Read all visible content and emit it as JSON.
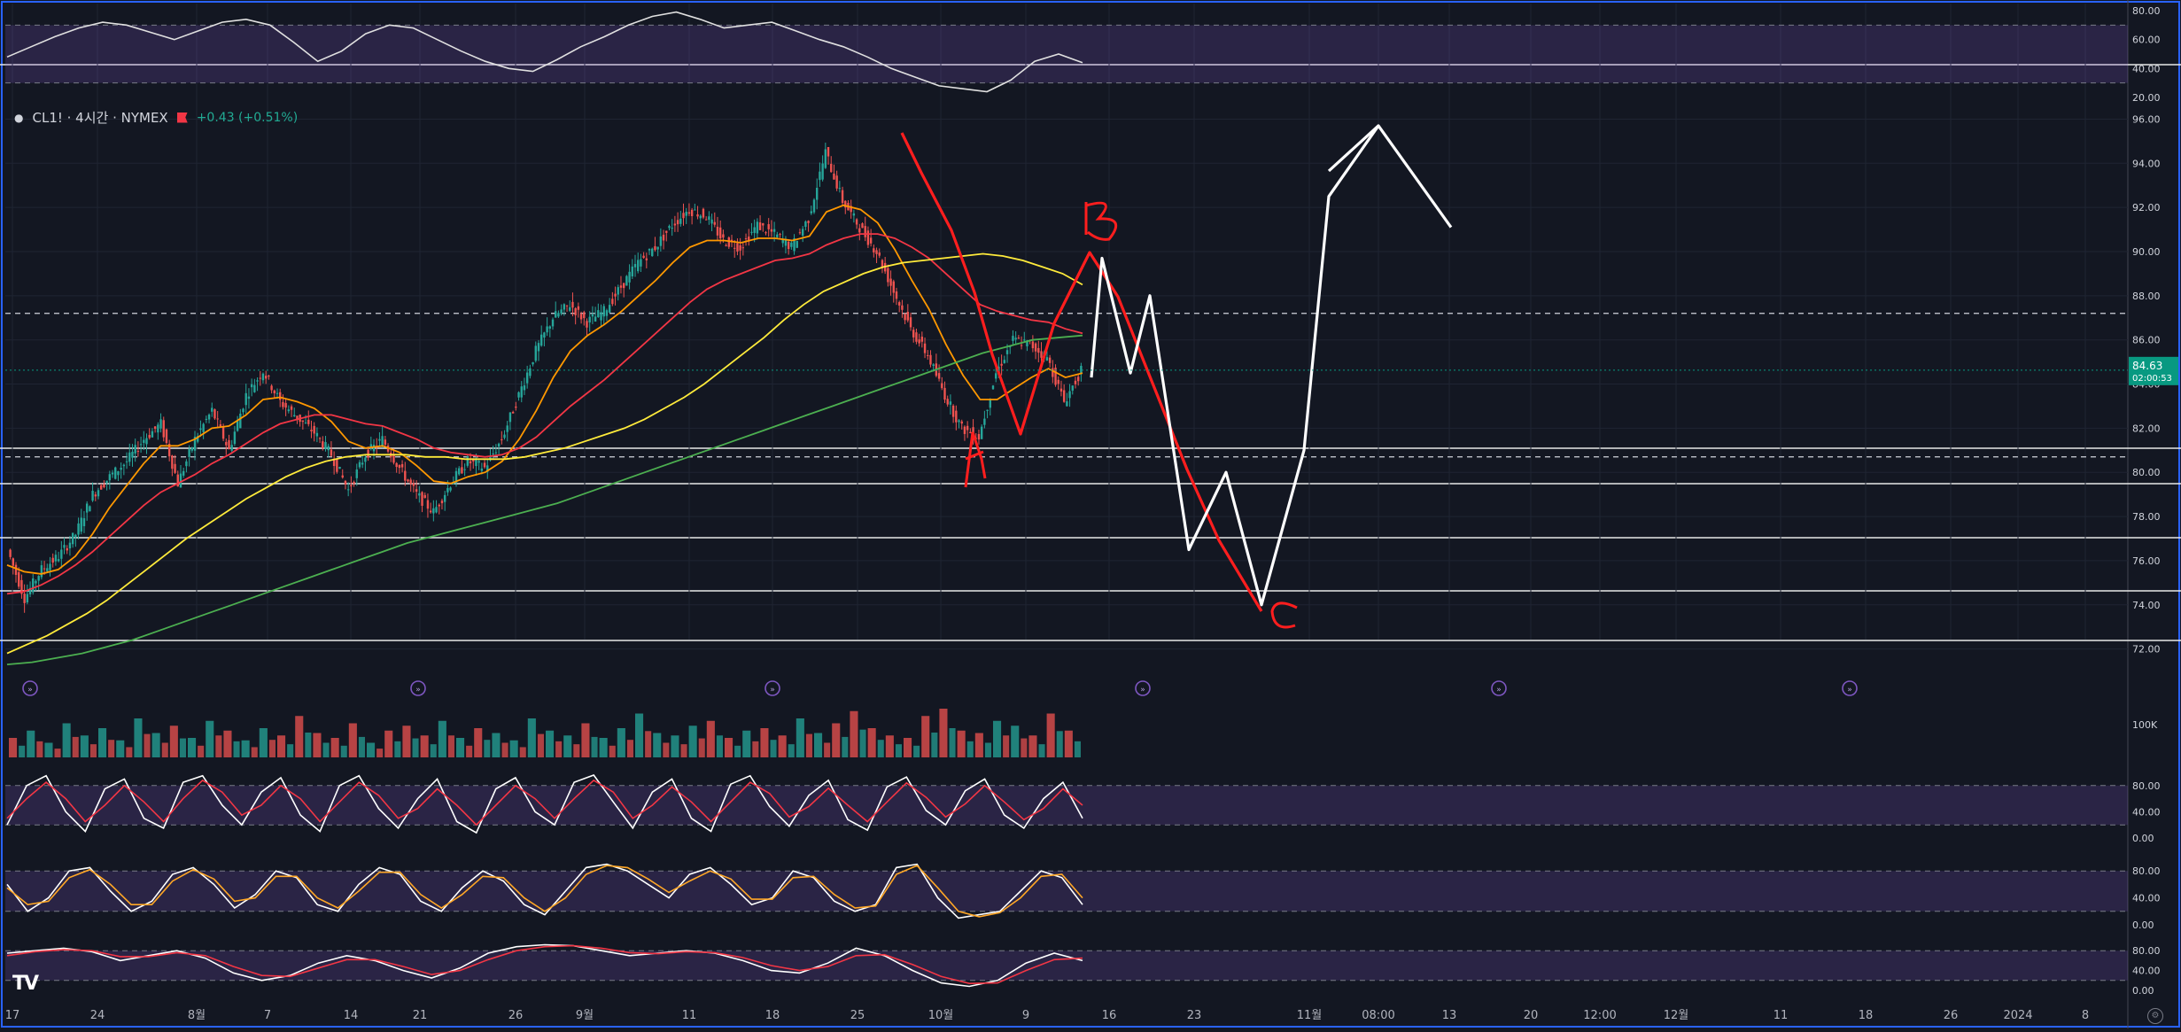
{
  "symbol_legend": {
    "symbol": "CL1! · 4시간 · NYMEX",
    "change": "+0.43 (+0.51%)",
    "up_color": "#26a69a",
    "down_color": "#ef5350"
  },
  "last_price": {
    "value": "84.63",
    "countdown": "02:00:53",
    "color": "#089981"
  },
  "x_axis": {
    "ticks": [
      "17",
      "24",
      "8월",
      "7",
      "14",
      "21",
      "26",
      "9월",
      "11",
      "18",
      "25",
      "10월",
      "9",
      "16",
      "23",
      "11월",
      "08:00",
      "13",
      "20",
      "12:00",
      "12월",
      "11",
      "18",
      "26",
      "2024",
      "8"
    ]
  },
  "chart_data": [
    {
      "type": "line",
      "panel": "rsi",
      "ylim": [
        20,
        80
      ],
      "y_ticks": [
        "80.00",
        "60.00",
        "40.00",
        "20.00"
      ],
      "bands": [
        30,
        70
      ],
      "series": [
        {
          "color": "#e0e0e0",
          "values": [
            48,
            55,
            62,
            68,
            72,
            70,
            65,
            60,
            66,
            72,
            74,
            70,
            58,
            45,
            52,
            64,
            70,
            68,
            60,
            52,
            45,
            40,
            38,
            46,
            55,
            62,
            70,
            76,
            79,
            74,
            68,
            70,
            72,
            66,
            60,
            55,
            48,
            40,
            34,
            28,
            26,
            24,
            32,
            45,
            50,
            44
          ]
        }
      ]
    },
    {
      "type": "candlestick",
      "panel": "price",
      "title": "CL1! · 4시간 · NYMEX",
      "ylim": [
        70.5,
        96.5
      ],
      "y_ticks": [
        "96.00",
        "94.00",
        "92.00",
        "90.00",
        "88.00",
        "86.00",
        "84.00",
        "82.00",
        "80.00",
        "78.00",
        "76.00",
        "74.00",
        "72.00"
      ],
      "horizontal_levels": [
        87.2,
        80.7
      ],
      "close_path": [
        76.5,
        74.3,
        75.6,
        76.2,
        77.2,
        79.0,
        79.8,
        80.5,
        81.5,
        82.2,
        79.5,
        81.5,
        82.8,
        81.0,
        83.5,
        84.6,
        83.2,
        82.5,
        81.8,
        80.8,
        79.2,
        80.8,
        81.5,
        80.2,
        79.0,
        78.2,
        79.5,
        80.5,
        80.2,
        81.5,
        83.5,
        85.5,
        87.0,
        87.6,
        86.8,
        87.3,
        88.4,
        89.5,
        90.2,
        91.2,
        91.9,
        91.6,
        90.5,
        90.2,
        91.2,
        90.8,
        90.2,
        91.5,
        94.5,
        92.3,
        91.1,
        90.0,
        88.2,
        86.5,
        85.3,
        83.5,
        82.0,
        81.6,
        84.5,
        86.0,
        85.8,
        85.2,
        83.2,
        84.6
      ],
      "moving_averages": [
        {
          "color": "#ff9800",
          "values": [
            75.8,
            75.5,
            75.4,
            75.6,
            76.2,
            77.2,
            78.4,
            79.4,
            80.4,
            81.2,
            81.2,
            81.5,
            82.0,
            82.1,
            82.6,
            83.3,
            83.4,
            83.2,
            82.9,
            82.3,
            81.4,
            81.1,
            81.2,
            80.9,
            80.3,
            79.6,
            79.5,
            79.8,
            80.0,
            80.5,
            81.5,
            82.8,
            84.3,
            85.5,
            86.2,
            86.7,
            87.3,
            88.0,
            88.7,
            89.5,
            90.2,
            90.5,
            90.5,
            90.4,
            90.6,
            90.6,
            90.5,
            90.7,
            91.8,
            92.1,
            91.9,
            91.3,
            90.1,
            88.7,
            87.4,
            85.8,
            84.4,
            83.3,
            83.3,
            83.8,
            84.3,
            84.7,
            84.3,
            84.5
          ]
        },
        {
          "color": "#f23645",
          "values": [
            74.5,
            74.6,
            74.9,
            75.3,
            75.8,
            76.4,
            77.1,
            77.8,
            78.5,
            79.1,
            79.5,
            79.9,
            80.4,
            80.8,
            81.3,
            81.8,
            82.2,
            82.4,
            82.6,
            82.6,
            82.4,
            82.2,
            82.1,
            81.8,
            81.5,
            81.1,
            80.9,
            80.8,
            80.7,
            80.8,
            81.1,
            81.6,
            82.3,
            83.0,
            83.6,
            84.2,
            84.9,
            85.6,
            86.3,
            87.0,
            87.7,
            88.3,
            88.7,
            89.0,
            89.3,
            89.6,
            89.7,
            89.9,
            90.3,
            90.6,
            90.8,
            90.8,
            90.6,
            90.2,
            89.7,
            89.0,
            88.3,
            87.6,
            87.3,
            87.1,
            86.9,
            86.8,
            86.5,
            86.3
          ]
        },
        {
          "color": "#ffeb3b",
          "values": [
            71.8,
            72.2,
            72.6,
            73.1,
            73.6,
            74.2,
            74.9,
            75.6,
            76.3,
            77.0,
            77.6,
            78.2,
            78.8,
            79.3,
            79.8,
            80.2,
            80.5,
            80.7,
            80.8,
            80.8,
            80.8,
            80.7,
            80.7,
            80.6,
            80.6,
            80.6,
            80.7,
            80.9,
            81.1,
            81.4,
            81.7,
            82.0,
            82.4,
            82.9,
            83.4,
            84.0,
            84.7,
            85.4,
            86.1,
            86.9,
            87.6,
            88.2,
            88.6,
            89.0,
            89.3,
            89.5,
            89.6,
            89.7,
            89.8,
            89.9,
            89.8,
            89.6,
            89.3,
            89.0,
            88.5
          ]
        },
        {
          "color": "#4caf50",
          "values": [
            71.3,
            71.4,
            71.6,
            71.8,
            72.1,
            72.4,
            72.8,
            73.2,
            73.6,
            74.0,
            74.4,
            74.8,
            75.2,
            75.6,
            76.0,
            76.4,
            76.8,
            77.1,
            77.4,
            77.7,
            78.0,
            78.3,
            78.6,
            79.0,
            79.4,
            79.8,
            80.2,
            80.6,
            81.0,
            81.4,
            81.8,
            82.2,
            82.6,
            83.0,
            83.4,
            83.8,
            84.2,
            84.6,
            85.0,
            85.4,
            85.7,
            86.0,
            86.1,
            86.2
          ]
        }
      ],
      "annotations": [
        {
          "label": "A",
          "color": "#ff1e1e"
        },
        {
          "label": "B",
          "color": "#ff1e1e"
        },
        {
          "label": "C",
          "color": "#ff1e1e"
        },
        {
          "label": "white projection",
          "color": "#ffffff",
          "points": [
            [
              0,
              84.3
            ],
            [
              1,
              89.7
            ],
            [
              2,
              84.5
            ],
            [
              3,
              88.0
            ],
            [
              4,
              76.5
            ],
            [
              5,
              80.0
            ],
            [
              6,
              74.0
            ],
            [
              7,
              81.0
            ],
            [
              8,
              92.5
            ],
            [
              9,
              95.7
            ],
            [
              10,
              91.1
            ]
          ]
        }
      ]
    },
    {
      "type": "bar",
      "panel": "volume",
      "y_ticks": [
        "100K"
      ],
      "values": [
        40,
        55,
        30,
        70,
        45,
        60,
        35,
        80,
        50,
        65,
        40,
        75,
        55,
        35,
        60,
        45,
        85,
        50,
        40,
        70,
        30,
        55,
        65,
        45,
        75,
        40,
        60,
        50,
        35,
        80,
        55,
        45,
        70,
        40,
        60,
        90,
        50,
        45,
        65,
        75,
        40,
        55,
        60,
        45,
        80,
        50,
        70,
        95,
        60,
        45,
        40,
        85,
        100,
        55,
        50,
        75,
        65,
        45,
        90,
        55
      ]
    },
    {
      "type": "line",
      "panel": "oscillator-1",
      "ylim": [
        0,
        100
      ],
      "y_ticks": [
        "80.00",
        "40.00",
        "0.00"
      ],
      "series": [
        {
          "color": "#ffffff",
          "values": [
            20,
            80,
            95,
            40,
            10,
            75,
            90,
            30,
            15,
            85,
            95,
            50,
            20,
            70,
            92,
            35,
            10,
            80,
            95,
            45,
            15,
            60,
            90,
            25,
            8,
            75,
            92,
            40,
            20,
            85,
            96,
            55,
            15,
            70,
            90,
            30,
            10,
            82,
            95,
            48,
            18,
            65,
            88,
            28,
            12,
            78,
            93,
            42,
            20,
            72,
            90,
            35,
            15,
            60,
            85,
            30
          ]
        },
        {
          "color": "#f23645",
          "values": [
            30,
            60,
            85,
            60,
            25,
            50,
            80,
            55,
            25,
            60,
            88,
            70,
            35,
            50,
            80,
            60,
            25,
            55,
            85,
            65,
            30,
            45,
            75,
            50,
            20,
            50,
            80,
            60,
            30,
            60,
            88,
            70,
            30,
            50,
            78,
            55,
            25,
            55,
            85,
            68,
            32,
            48,
            76,
            50,
            25,
            55,
            84,
            62,
            32,
            52,
            80,
            55,
            28,
            45,
            75,
            50
          ]
        }
      ]
    },
    {
      "type": "line",
      "panel": "oscillator-2",
      "ylim": [
        0,
        100
      ],
      "y_ticks": [
        "80.00",
        "40.00",
        "0.00"
      ],
      "series": [
        {
          "color": "#ffffff",
          "values": [
            60,
            20,
            40,
            80,
            85,
            50,
            20,
            35,
            75,
            85,
            60,
            25,
            45,
            80,
            70,
            30,
            20,
            60,
            85,
            75,
            35,
            20,
            55,
            80,
            65,
            30,
            15,
            50,
            85,
            90,
            80,
            60,
            40,
            75,
            85,
            60,
            30,
            40,
            80,
            70,
            35,
            20,
            30,
            85,
            90,
            40,
            10,
            15,
            20,
            50,
            80,
            70,
            30
          ]
        },
        {
          "color": "#ffa726",
          "values": [
            55,
            30,
            35,
            70,
            82,
            60,
            30,
            30,
            65,
            82,
            68,
            35,
            40,
            72,
            72,
            40,
            25,
            50,
            78,
            78,
            45,
            25,
            45,
            72,
            70,
            40,
            20,
            40,
            75,
            88,
            85,
            68,
            48,
            65,
            80,
            68,
            38,
            38,
            70,
            72,
            45,
            25,
            28,
            75,
            88,
            55,
            20,
            12,
            18,
            40,
            72,
            75,
            40
          ]
        }
      ]
    },
    {
      "type": "line",
      "panel": "oscillator-3",
      "ylim": [
        0,
        100
      ],
      "y_ticks": [
        "80.00",
        "40.00",
        "0.00"
      ],
      "series": [
        {
          "color": "#ffffff",
          "values": [
            75,
            80,
            85,
            78,
            60,
            70,
            80,
            65,
            35,
            20,
            30,
            55,
            70,
            60,
            40,
            25,
            45,
            75,
            88,
            92,
            90,
            80,
            70,
            75,
            80,
            75,
            60,
            40,
            35,
            55,
            85,
            70,
            40,
            15,
            8,
            20,
            55,
            75,
            60
          ]
        },
        {
          "color": "#f23645",
          "values": [
            70,
            78,
            82,
            80,
            68,
            68,
            76,
            70,
            48,
            30,
            28,
            45,
            62,
            62,
            48,
            32,
            40,
            62,
            80,
            88,
            90,
            85,
            76,
            74,
            78,
            76,
            66,
            50,
            40,
            48,
            70,
            72,
            52,
            28,
            14,
            15,
            40,
            62,
            65
          ]
        }
      ]
    }
  ]
}
